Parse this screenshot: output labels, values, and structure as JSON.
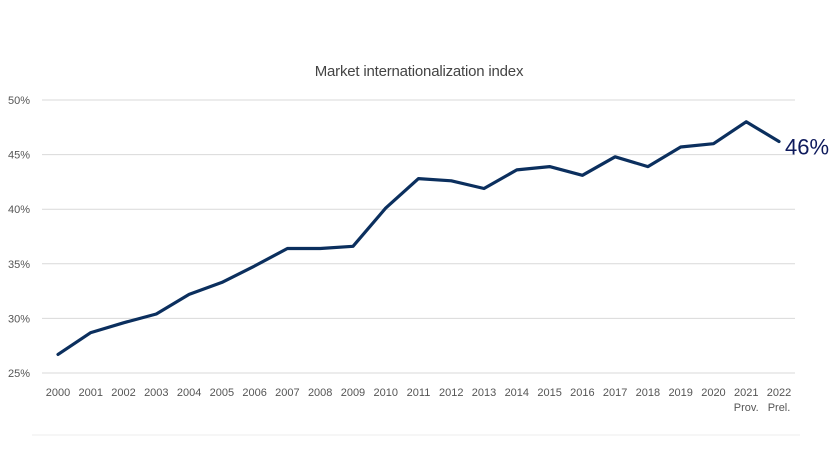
{
  "chart_data": {
    "type": "line",
    "title": "Market internationalization index",
    "xlabel": "",
    "ylabel": "",
    "x": [
      "2000",
      "2001",
      "2002",
      "2003",
      "2004",
      "2005",
      "2006",
      "2007",
      "2008",
      "2009",
      "2010",
      "2011",
      "2012",
      "2013",
      "2014",
      "2015",
      "2016",
      "2017",
      "2018",
      "2019",
      "2020",
      "2021",
      "2022"
    ],
    "x_sublabels": [
      "",
      "",
      "",
      "",
      "",
      "",
      "",
      "",
      "",
      "",
      "",
      "",
      "",
      "",
      "",
      "",
      "",
      "",
      "",
      "",
      "",
      "Prov.",
      "Prel."
    ],
    "series": [
      {
        "values": [
          26.7,
          28.7,
          29.6,
          30.4,
          32.2,
          33.3,
          34.8,
          36.4,
          36.4,
          36.6,
          40.1,
          42.8,
          42.6,
          41.9,
          43.6,
          43.9,
          43.1,
          44.8,
          43.9,
          45.7,
          46.0,
          48.0,
          46.2
        ]
      }
    ],
    "ylim": [
      25,
      50
    ],
    "yticks": [
      25,
      30,
      35,
      40,
      45,
      50
    ],
    "ytick_labels": [
      "25%",
      "30%",
      "35%",
      "40%",
      "45%",
      "50%"
    ],
    "grid": "horizontal",
    "annotation": "46%",
    "colors": {
      "line": "#0b2f5e",
      "annotation": "#0e1a5c",
      "grid": "#d9d9d9"
    }
  }
}
